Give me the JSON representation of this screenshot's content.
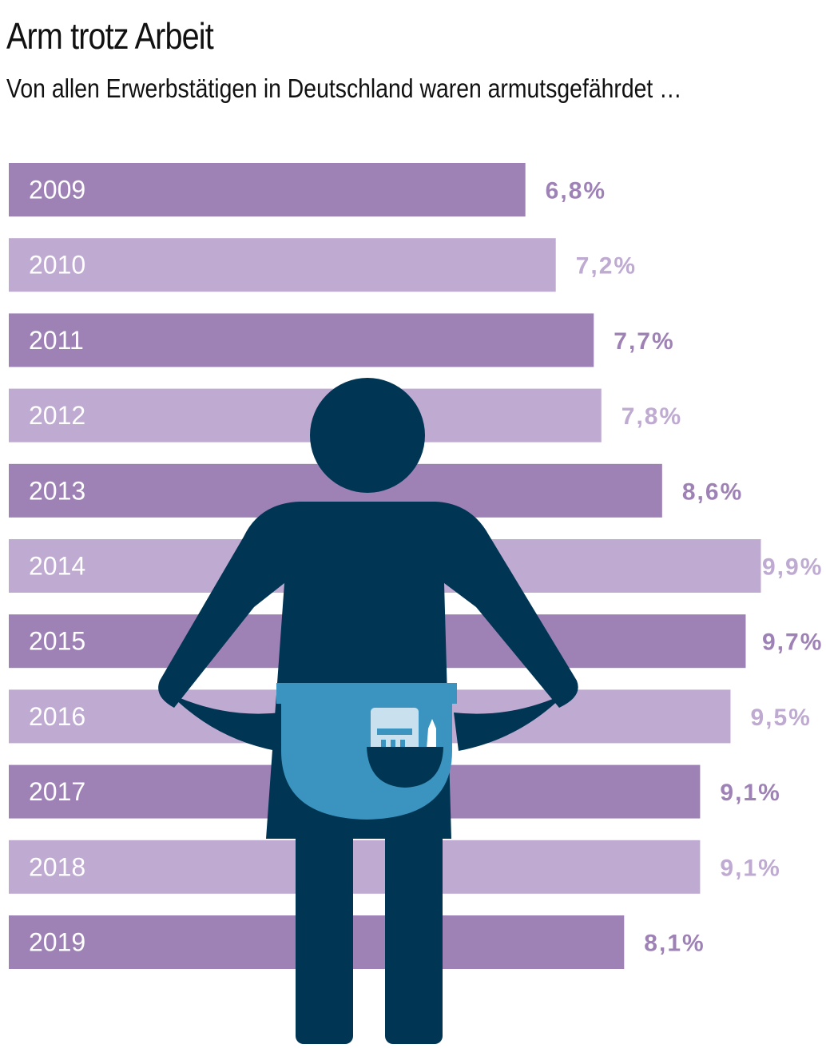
{
  "title": "Arm trotz Arbeit",
  "subtitle": "Von allen Erwerbstätigen in Deutschland waren armutsgefährdet …",
  "colors": {
    "bar_dark": "#9e82b6",
    "bar_light": "#bfaad2",
    "figure": "#003653",
    "apron": "#3b94bf",
    "belt": "#3b94bf",
    "item": "#c9e1ee"
  },
  "illustration": {
    "icon": "person-pockets-inside-out-icon"
  },
  "chart_data": {
    "type": "bar",
    "orientation": "horizontal",
    "categories": [
      "2009",
      "2010",
      "2011",
      "2012",
      "2013",
      "2014",
      "2015",
      "2016",
      "2017",
      "2018",
      "2019"
    ],
    "values": [
      6.8,
      7.2,
      7.7,
      7.8,
      8.6,
      9.9,
      9.7,
      9.5,
      9.1,
      9.1,
      8.1
    ],
    "value_labels": [
      "6,8%",
      "7,2%",
      "7,7%",
      "7,8%",
      "8,6%",
      "9,9%",
      "9,7%",
      "9,5%",
      "9,1%",
      "9,1%",
      "8,1%"
    ],
    "unit": "%",
    "xlim": [
      0,
      10
    ],
    "grid": false,
    "legend": "none"
  }
}
